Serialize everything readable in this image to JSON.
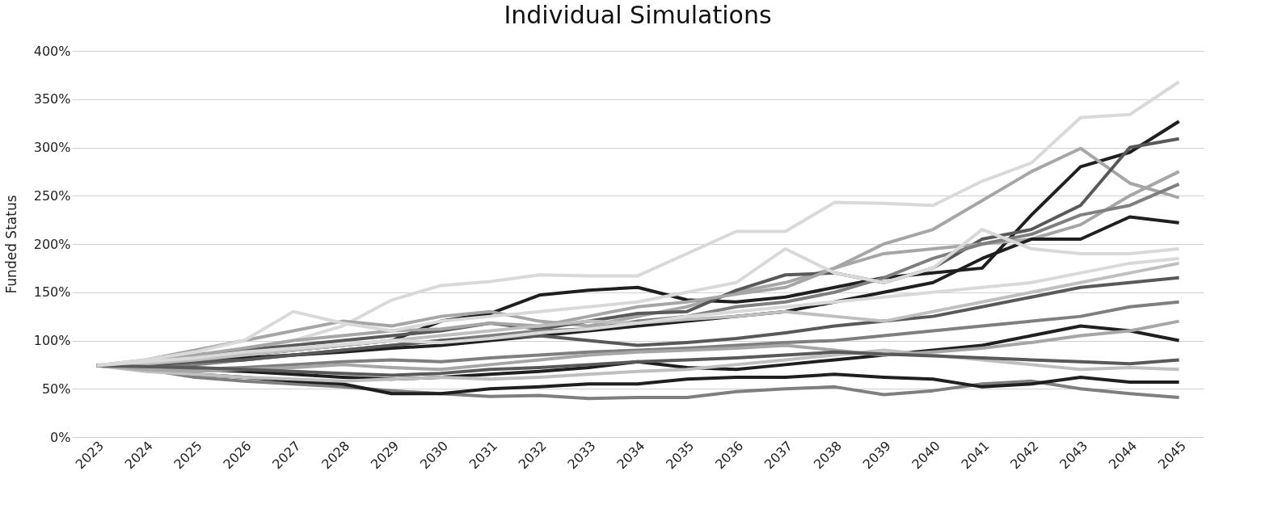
{
  "chart_data": {
    "type": "line",
    "title": "Individual Simulations",
    "ylabel": "Funded Status",
    "categories": [
      "2023",
      "2024",
      "2025",
      "2026",
      "2027",
      "2028",
      "2029",
      "2030",
      "2031",
      "2032",
      "2033",
      "2034",
      "2035",
      "2036",
      "2037",
      "2038",
      "2039",
      "2040",
      "2041",
      "2042",
      "2043",
      "2044",
      "2045"
    ],
    "ylim": [
      0,
      400
    ],
    "yticks": [
      {
        "value": 0,
        "label": "0%"
      },
      {
        "value": 50,
        "label": "50%"
      },
      {
        "value": 100,
        "label": "100%"
      },
      {
        "value": 150,
        "label": "150%"
      },
      {
        "value": 200,
        "label": "200%"
      },
      {
        "value": 250,
        "label": "250%"
      },
      {
        "value": 300,
        "label": "300%"
      },
      {
        "value": 350,
        "label": "350%"
      },
      {
        "value": 400,
        "label": "400%"
      }
    ],
    "grid": "y",
    "legend": false,
    "marker": "none",
    "line_style": "solid",
    "series": [
      {
        "color": "#d9d9d9",
        "values": [
          74,
          75,
          82,
          90,
          100,
          115,
          142,
          157,
          161,
          168,
          167,
          167,
          190,
          213,
          213,
          243,
          242,
          240,
          265,
          284,
          331,
          334,
          368
        ]
      },
      {
        "color": "#1f1f1f",
        "values": [
          74,
          78,
          80,
          85,
          90,
          95,
          100,
          120,
          128,
          147,
          152,
          155,
          142,
          140,
          145,
          155,
          165,
          170,
          175,
          230,
          280,
          295,
          327
        ]
      },
      {
        "color": "#a6a6a6",
        "values": [
          74,
          80,
          90,
          100,
          110,
          120,
          115,
          125,
          130,
          120,
          115,
          125,
          135,
          150,
          160,
          175,
          200,
          215,
          245,
          275,
          299,
          263,
          248
        ]
      },
      {
        "color": "#595959",
        "values": [
          74,
          76,
          82,
          90,
          95,
          100,
          105,
          110,
          118,
          112,
          120,
          128,
          130,
          152,
          168,
          170,
          160,
          175,
          205,
          215,
          240,
          300,
          309
        ]
      },
      {
        "color": "#a6a6a6",
        "values": [
          74,
          78,
          85,
          92,
          100,
          105,
          110,
          112,
          118,
          115,
          125,
          135,
          140,
          148,
          155,
          175,
          190,
          195,
          200,
          205,
          220,
          250,
          275
        ]
      },
      {
        "color": "#7f7f7f",
        "values": [
          74,
          72,
          75,
          80,
          85,
          90,
          95,
          100,
          105,
          110,
          112,
          120,
          125,
          135,
          140,
          150,
          165,
          185,
          200,
          210,
          230,
          240,
          262
        ]
      },
      {
        "color": "#1f1f1f",
        "values": [
          74,
          75,
          78,
          82,
          85,
          88,
          92,
          95,
          100,
          105,
          110,
          115,
          120,
          125,
          130,
          140,
          150,
          160,
          185,
          205,
          205,
          228,
          222
        ]
      },
      {
        "color": "#d9d9d9",
        "values": [
          74,
          80,
          88,
          100,
          130,
          118,
          110,
          120,
          125,
          130,
          135,
          140,
          150,
          160,
          195,
          170,
          160,
          175,
          215,
          195,
          190,
          190,
          195
        ]
      },
      {
        "color": "#7f7f7f",
        "values": [
          74,
          70,
          62,
          58,
          55,
          52,
          48,
          45,
          42,
          43,
          40,
          41,
          41,
          47,
          50,
          52,
          44,
          48,
          55,
          58,
          50,
          45,
          41
        ]
      },
      {
        "color": "#1f1f1f",
        "values": [
          74,
          70,
          65,
          62,
          58,
          55,
          45,
          45,
          50,
          52,
          55,
          55,
          60,
          62,
          62,
          65,
          62,
          60,
          52,
          55,
          62,
          57,
          57
        ]
      },
      {
        "color": "#1f1f1f",
        "values": [
          74,
          72,
          70,
          68,
          65,
          62,
          60,
          62,
          65,
          68,
          72,
          78,
          72,
          70,
          75,
          80,
          85,
          90,
          95,
          105,
          115,
          110,
          100
        ]
      },
      {
        "color": "#bfbfbf",
        "values": [
          74,
          68,
          65,
          62,
          60,
          58,
          60,
          62,
          60,
          62,
          65,
          68,
          70,
          75,
          80,
          85,
          90,
          85,
          80,
          75,
          70,
          72,
          70
        ]
      },
      {
        "color": "#595959",
        "values": [
          74,
          75,
          78,
          80,
          85,
          90,
          95,
          100,
          102,
          105,
          100,
          95,
          98,
          102,
          108,
          115,
          120,
          125,
          135,
          145,
          155,
          160,
          165
        ]
      },
      {
        "color": "#bfbfbf",
        "values": [
          74,
          76,
          80,
          85,
          90,
          95,
          100,
          105,
          110,
          115,
          120,
          118,
          122,
          125,
          130,
          125,
          120,
          130,
          140,
          150,
          160,
          170,
          180
        ]
      },
      {
        "color": "#7f7f7f",
        "values": [
          74,
          72,
          70,
          72,
          75,
          78,
          80,
          78,
          82,
          85,
          88,
          90,
          92,
          95,
          98,
          100,
          105,
          110,
          115,
          120,
          125,
          135,
          140
        ]
      },
      {
        "color": "#a6a6a6",
        "values": [
          74,
          70,
          68,
          70,
          72,
          75,
          72,
          70,
          75,
          80,
          85,
          88,
          90,
          92,
          95,
          90,
          85,
          88,
          92,
          98,
          105,
          110,
          120
        ]
      },
      {
        "color": "#595959",
        "values": [
          74,
          73,
          72,
          70,
          68,
          66,
          64,
          66,
          70,
          72,
          75,
          78,
          80,
          82,
          85,
          88,
          86,
          84,
          82,
          80,
          78,
          76,
          80
        ]
      },
      {
        "color": "#d9d9d9",
        "values": [
          74,
          78,
          82,
          88,
          92,
          96,
          100,
          98,
          102,
          108,
          112,
          118,
          125,
          130,
          135,
          140,
          145,
          150,
          155,
          160,
          170,
          180,
          185
        ]
      }
    ]
  }
}
